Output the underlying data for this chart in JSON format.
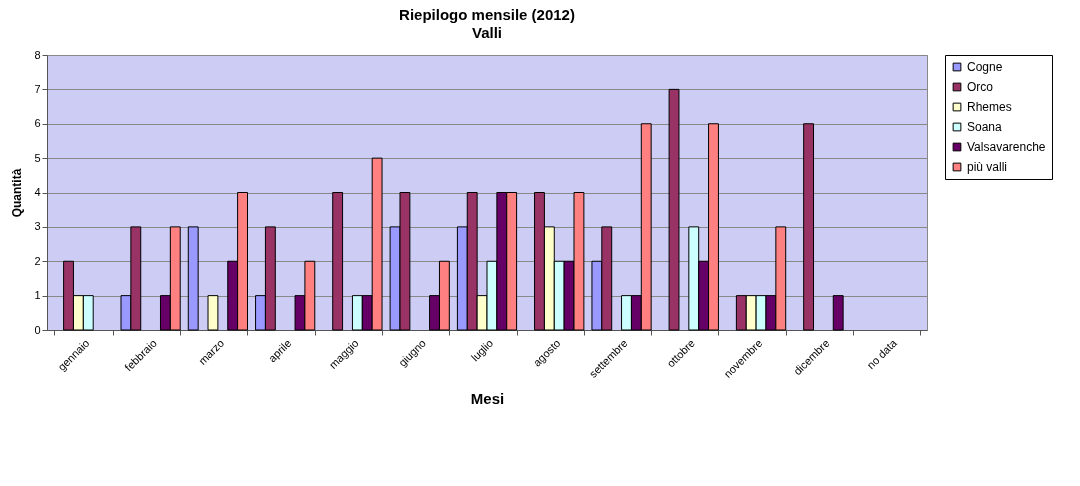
{
  "chart_data": {
    "type": "bar",
    "title": "Riepilogo mensile (2012)",
    "subtitle": "Valli",
    "xlabel": "Mesi",
    "ylabel": "Quantità",
    "categories": [
      "gennaio",
      "febbraio",
      "marzo",
      "aprile",
      "maggio",
      "giugno",
      "luglio",
      "agosto",
      "settembre",
      "ottobre",
      "novembre",
      "dicembre",
      "no data"
    ],
    "series": [
      {
        "name": "Cogne",
        "color": "#9999ff",
        "values": [
          null,
          1,
          3,
          1,
          null,
          3,
          3,
          null,
          2,
          null,
          null,
          null,
          null
        ]
      },
      {
        "name": "Orco",
        "color": "#993366",
        "values": [
          2,
          3,
          null,
          3,
          4,
          4,
          4,
          4,
          3,
          7,
          1,
          6,
          null
        ]
      },
      {
        "name": "Rhemes",
        "color": "#ffffcc",
        "values": [
          1,
          null,
          1,
          null,
          null,
          null,
          1,
          3,
          null,
          null,
          1,
          null,
          null
        ]
      },
      {
        "name": "Soana",
        "color": "#ccffff",
        "values": [
          1,
          null,
          null,
          null,
          1,
          null,
          2,
          2,
          1,
          3,
          1,
          null,
          null
        ]
      },
      {
        "name": "Valsavarenche",
        "color": "#660066",
        "values": [
          null,
          1,
          2,
          1,
          1,
          1,
          4,
          2,
          1,
          2,
          1,
          1,
          null
        ]
      },
      {
        "name": "più valli",
        "color": "#ff8080",
        "values": [
          null,
          3,
          4,
          2,
          5,
          2,
          4,
          4,
          6,
          6,
          3,
          null,
          null
        ]
      }
    ],
    "ylim": [
      0,
      8
    ],
    "yticks": [
      0,
      1,
      2,
      3,
      4,
      5,
      6,
      7,
      8
    ],
    "grid": "y",
    "legend": "right"
  }
}
